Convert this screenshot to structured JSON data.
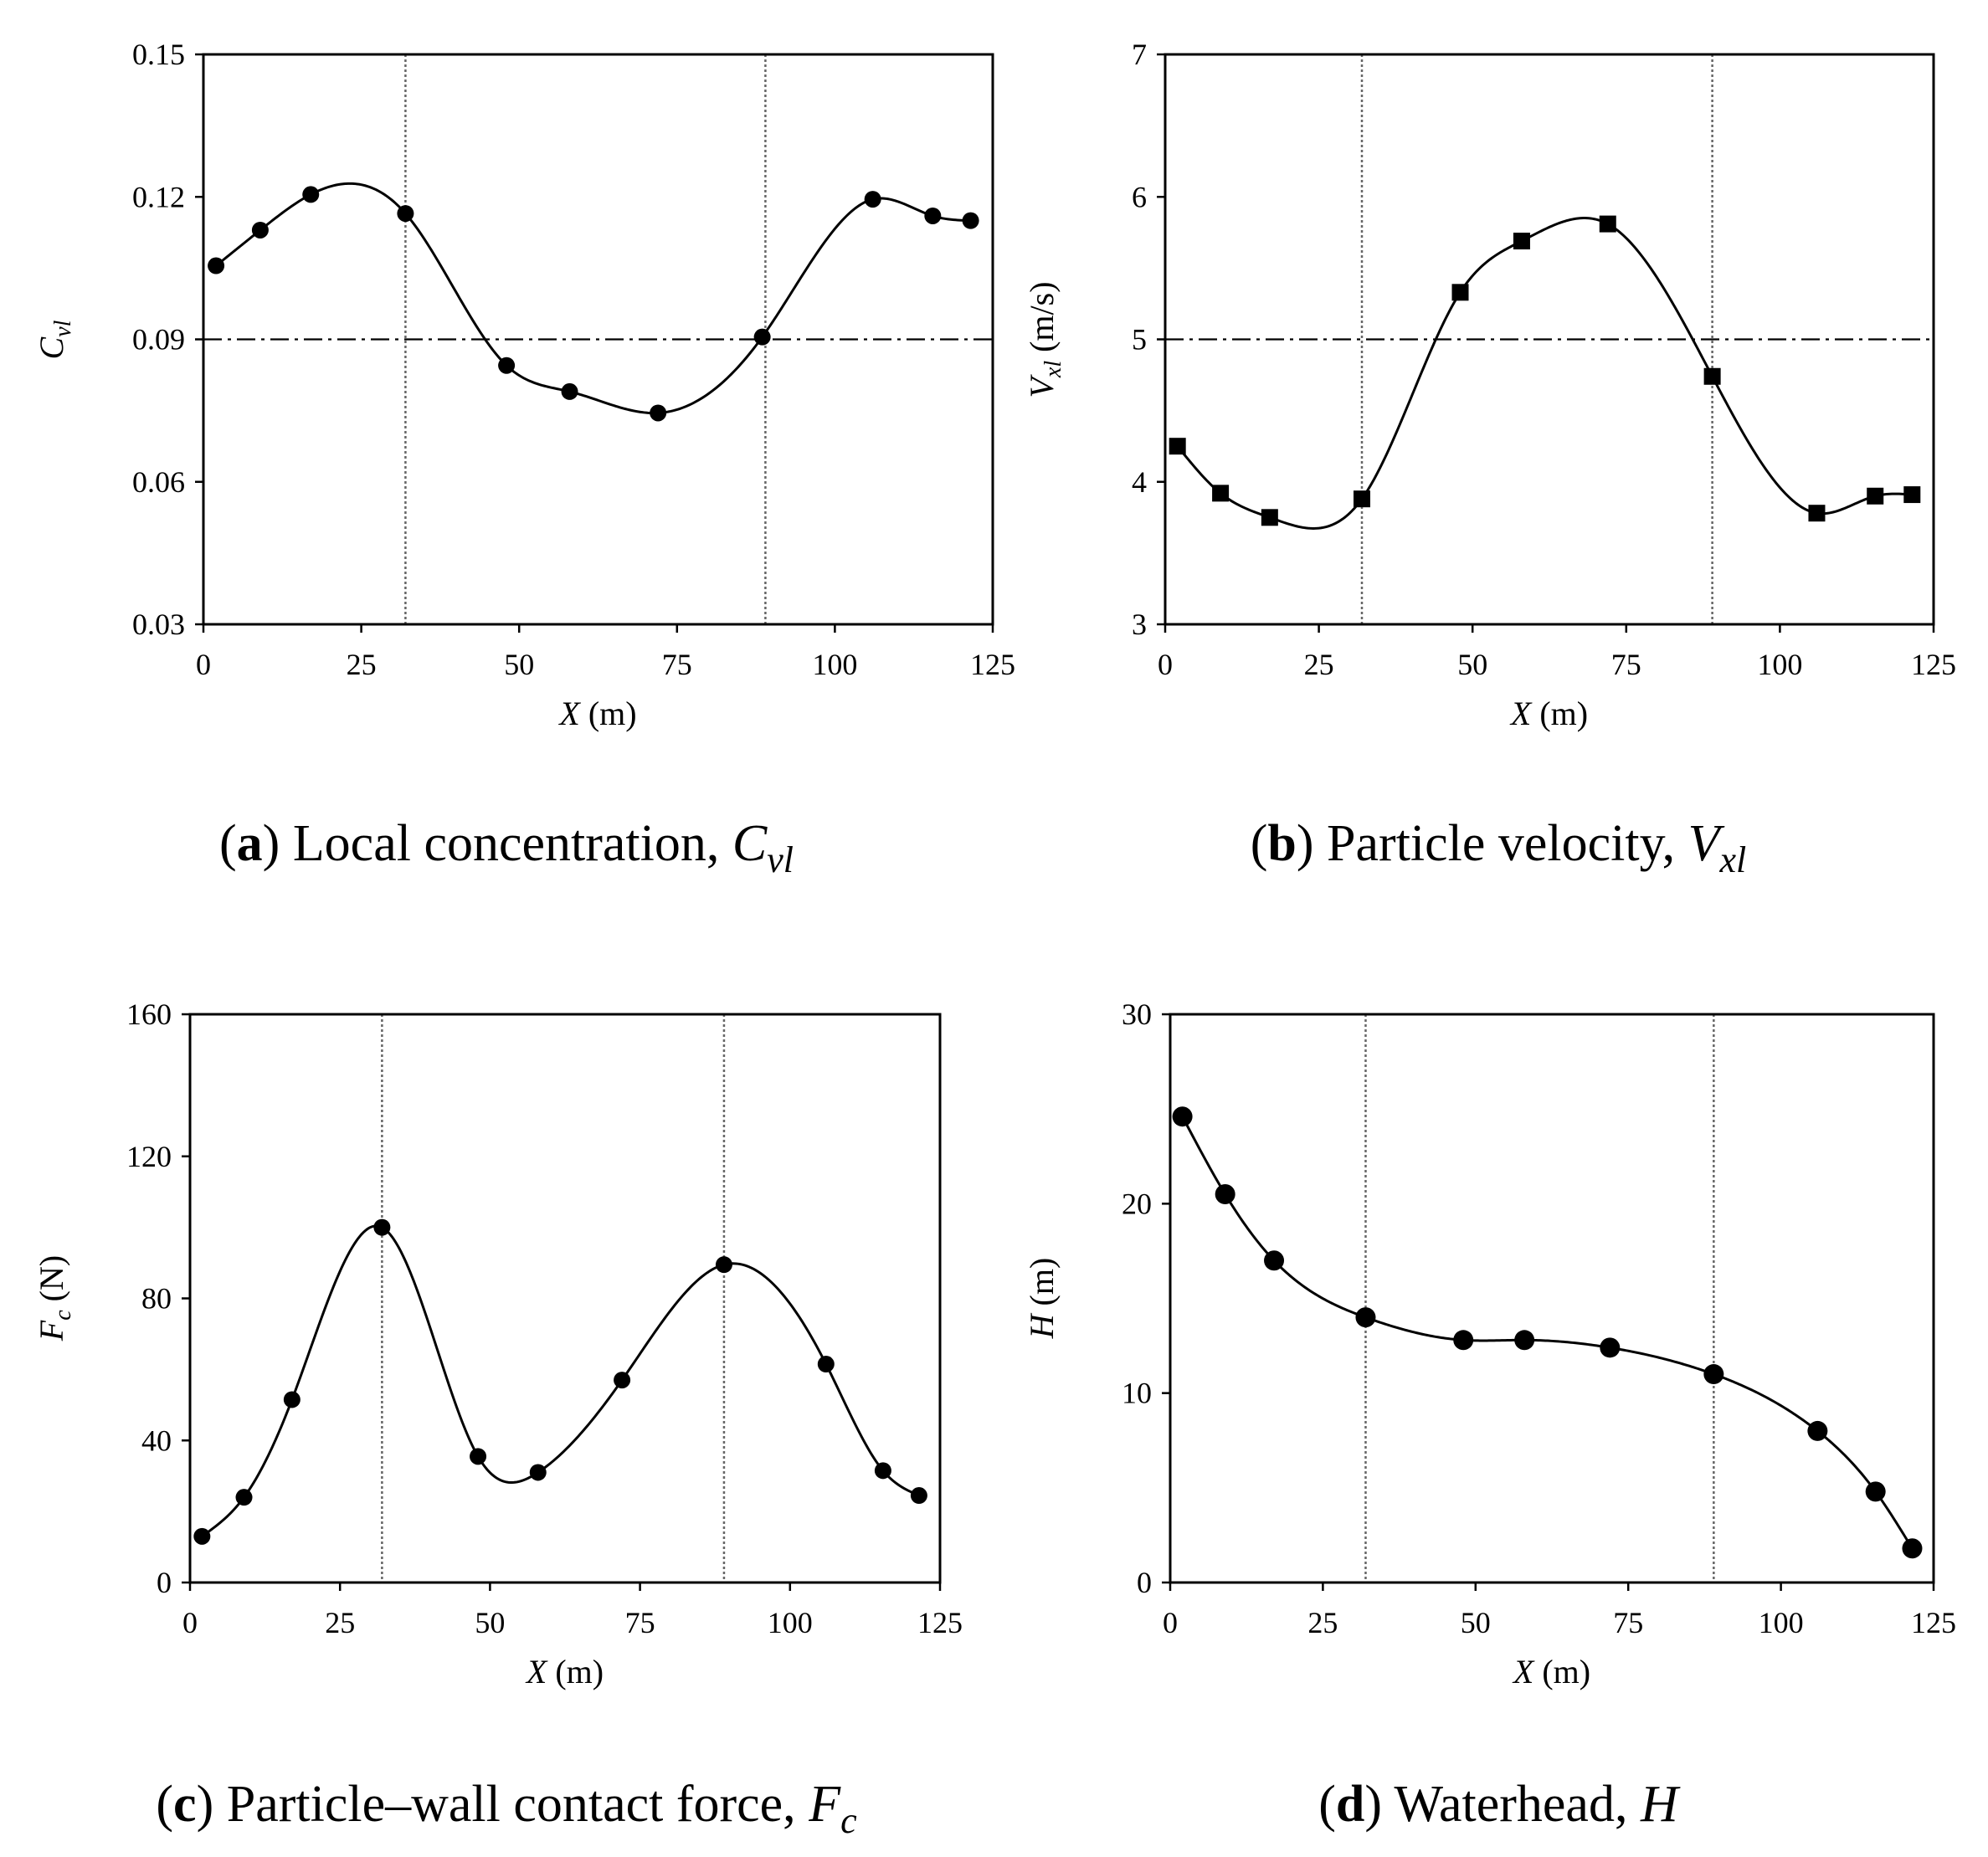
{
  "chart_data": [
    {
      "id": "a",
      "type": "line",
      "marker": "circle",
      "caption": {
        "letter": "a",
        "text": "Local concentration, ",
        "symbol": "C",
        "subscript": "vl"
      },
      "ylabel": {
        "symbol": "C",
        "subscript": "vl",
        "unit": ""
      },
      "xlabel": {
        "symbol": "X",
        "unit": "(m)"
      },
      "xlim": [
        0,
        125
      ],
      "ylim": [
        0.03,
        0.15
      ],
      "xticks": [
        0,
        25,
        50,
        75,
        100,
        125
      ],
      "xtick_labels": [
        "0",
        "25",
        "50",
        "75",
        "100",
        "125"
      ],
      "yticks": [
        0.03,
        0.06,
        0.09,
        0.12,
        0.15
      ],
      "ytick_labels": [
        "0.03",
        "0.06",
        "0.09",
        "0.12",
        "0.15"
      ],
      "hline": 0.09,
      "vlines": [
        32,
        89
      ],
      "x": [
        2,
        9,
        17,
        32,
        48,
        58,
        72,
        88.5,
        106,
        115.5,
        121.5
      ],
      "y": [
        0.1055,
        0.113,
        0.1205,
        0.1165,
        0.0845,
        0.079,
        0.0745,
        0.0905,
        0.1195,
        0.116,
        0.115
      ]
    },
    {
      "id": "b",
      "type": "line",
      "marker": "square",
      "caption": {
        "letter": "b",
        "text": "Particle velocity, ",
        "symbol": "V",
        "subscript": "xl"
      },
      "ylabel": {
        "symbol": "V",
        "subscript": "xl",
        "unit": " (m/s)"
      },
      "xlabel": {
        "symbol": "X",
        "unit": "(m)"
      },
      "xlim": [
        0,
        125
      ],
      "ylim": [
        3,
        7
      ],
      "xticks": [
        0,
        25,
        50,
        75,
        100,
        125
      ],
      "xtick_labels": [
        "0",
        "25",
        "50",
        "75",
        "100",
        "125"
      ],
      "yticks": [
        3,
        4,
        5,
        6,
        7
      ],
      "ytick_labels": [
        "3",
        "4",
        "5",
        "6",
        "7"
      ],
      "hline": 5,
      "vlines": [
        32,
        89
      ],
      "x": [
        2,
        9,
        17,
        32,
        48,
        58,
        72,
        89,
        106,
        115.5,
        121.5
      ],
      "y": [
        4.25,
        3.92,
        3.75,
        3.88,
        5.33,
        5.69,
        5.81,
        4.74,
        3.78,
        3.9,
        3.91
      ]
    },
    {
      "id": "c",
      "type": "line",
      "marker": "circle",
      "caption": {
        "letter": "c",
        "text": "Particle–wall contact force, ",
        "symbol": "F",
        "subscript": "c"
      },
      "ylabel": {
        "symbol": "F",
        "subscript": "c",
        "unit": " (N)"
      },
      "xlabel": {
        "symbol": "X",
        "unit": "(m)"
      },
      "xlim": [
        0,
        125
      ],
      "ylim": [
        0,
        160
      ],
      "xticks": [
        0,
        25,
        50,
        75,
        100,
        125
      ],
      "xtick_labels": [
        "0",
        "25",
        "50",
        "75",
        "100",
        "125"
      ],
      "yticks": [
        0,
        40,
        80,
        120,
        160
      ],
      "ytick_labels": [
        "0",
        "40",
        "80",
        "120",
        "160"
      ],
      "hline": null,
      "vlines": [
        32,
        89
      ],
      "x": [
        2,
        9,
        17,
        32,
        48,
        58,
        72,
        89,
        106,
        115.5,
        121.5
      ],
      "y": [
        13,
        24,
        51.5,
        100,
        35.5,
        31,
        57,
        89.5,
        61.5,
        31.5,
        24.5
      ]
    },
    {
      "id": "d",
      "type": "line",
      "marker": "circle",
      "caption": {
        "letter": "d",
        "text": "Waterhead, ",
        "symbol": "H",
        "subscript": ""
      },
      "ylabel": {
        "symbol": "H",
        "subscript": "",
        "unit": " (m)"
      },
      "xlabel": {
        "symbol": "X",
        "unit": "(m)"
      },
      "xlim": [
        0,
        125
      ],
      "ylim": [
        0,
        30
      ],
      "xticks": [
        0,
        25,
        50,
        75,
        100,
        125
      ],
      "xtick_labels": [
        "0",
        "25",
        "50",
        "75",
        "100",
        "125"
      ],
      "yticks": [
        0,
        10,
        20,
        30
      ],
      "ytick_labels": [
        "0",
        "10",
        "20",
        "30"
      ],
      "hline": null,
      "vlines": [
        32,
        89
      ],
      "x": [
        2,
        9,
        17,
        32,
        48,
        58,
        72,
        89,
        106,
        115.5,
        121.5
      ],
      "y": [
        24.6,
        20.5,
        17.0,
        14.0,
        12.8,
        12.8,
        12.4,
        11.0,
        8.0,
        4.8,
        1.8
      ]
    }
  ]
}
